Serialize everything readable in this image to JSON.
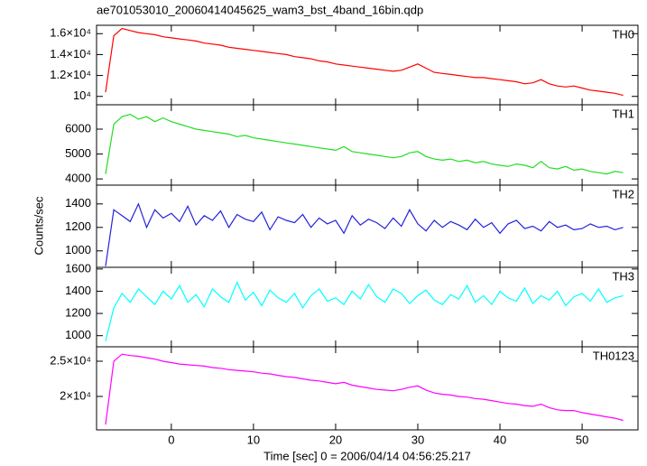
{
  "chart_data": {
    "type": "line",
    "title": "ae701053010_20060414045625_wam3_bst_4band_16bin.qdp",
    "xlabel": "Time [sec] 0 = 2006/04/14 04:56:25.217",
    "ylabel": "Counts/sec",
    "xlim": [
      -9.1,
      56.8
    ],
    "xticks": [
      0,
      10,
      20,
      30,
      40,
      50
    ],
    "x": [
      -8,
      -7,
      -6,
      -5,
      -4,
      -3,
      -2,
      -1,
      0,
      1,
      2,
      3,
      4,
      5,
      6,
      7,
      8,
      9,
      10,
      11,
      12,
      13,
      14,
      15,
      16,
      17,
      18,
      19,
      20,
      21,
      22,
      23,
      24,
      25,
      26,
      27,
      28,
      29,
      30,
      31,
      32,
      33,
      34,
      35,
      36,
      37,
      38,
      39,
      40,
      41,
      42,
      43,
      44,
      45,
      46,
      47,
      48,
      49,
      50,
      51,
      52,
      53,
      54,
      55
    ],
    "series": [
      {
        "name": "TH0",
        "color": "#ff0000",
        "ylim": [
          9200,
          16800
        ],
        "yticks": [
          {
            "value": 10000,
            "label": "10⁴"
          },
          {
            "value": 12000,
            "label": "1.2×10⁴"
          },
          {
            "value": 14000,
            "label": "1.4×10⁴"
          },
          {
            "value": 16000,
            "label": "1.6×10⁴"
          }
        ],
        "values": [
          10400,
          15800,
          16500,
          16300,
          16100,
          16000,
          15900,
          15700,
          15600,
          15500,
          15400,
          15300,
          15100,
          15000,
          14900,
          14700,
          14600,
          14500,
          14400,
          14300,
          14200,
          14100,
          14000,
          13800,
          13700,
          13600,
          13400,
          13300,
          13100,
          13000,
          12900,
          12800,
          12700,
          12600,
          12500,
          12400,
          12500,
          12800,
          13100,
          12700,
          12300,
          12200,
          12100,
          12000,
          11900,
          11800,
          11800,
          11700,
          11600,
          11500,
          11400,
          11200,
          11300,
          11600,
          11200,
          11000,
          10900,
          11000,
          10800,
          10600,
          10500,
          10400,
          10300,
          10100
        ]
      },
      {
        "name": "TH1",
        "color": "#22dd22",
        "ylim": [
          3750,
          6980
        ],
        "yticks": [
          4000,
          5000,
          6000
        ],
        "values": [
          4200,
          6200,
          6500,
          6600,
          6400,
          6500,
          6300,
          6450,
          6300,
          6200,
          6100,
          6000,
          5950,
          5900,
          5850,
          5800,
          5700,
          5750,
          5650,
          5600,
          5550,
          5500,
          5450,
          5400,
          5350,
          5300,
          5250,
          5200,
          5150,
          5300,
          5100,
          5050,
          5000,
          4950,
          4900,
          4850,
          4900,
          5050,
          5100,
          4900,
          4800,
          4750,
          4800,
          4700,
          4750,
          4650,
          4700,
          4600,
          4550,
          4500,
          4600,
          4550,
          4450,
          4700,
          4450,
          4400,
          4500,
          4350,
          4400,
          4300,
          4250,
          4200,
          4300,
          4250
        ]
      },
      {
        "name": "TH2",
        "color": "#2222dd",
        "ylim": [
          860,
          1560
        ],
        "yticks": [
          1000,
          1200,
          1400
        ],
        "values": [
          870,
          1350,
          1300,
          1250,
          1400,
          1200,
          1350,
          1280,
          1320,
          1250,
          1380,
          1220,
          1300,
          1260,
          1340,
          1200,
          1310,
          1270,
          1250,
          1330,
          1180,
          1290,
          1260,
          1240,
          1310,
          1200,
          1280,
          1230,
          1260,
          1150,
          1300,
          1220,
          1270,
          1240,
          1190,
          1280,
          1210,
          1350,
          1230,
          1170,
          1260,
          1200,
          1250,
          1220,
          1180,
          1270,
          1200,
          1240,
          1150,
          1230,
          1260,
          1190,
          1210,
          1170,
          1250,
          1200,
          1220,
          1180,
          1190,
          1230,
          1200,
          1210,
          1180,
          1200
        ]
      },
      {
        "name": "TH3",
        "color": "#00ffff",
        "ylim": [
          900,
          1615
        ],
        "yticks": [
          1000,
          1200,
          1400,
          1600
        ],
        "values": [
          950,
          1250,
          1380,
          1300,
          1420,
          1350,
          1280,
          1400,
          1330,
          1450,
          1300,
          1370,
          1260,
          1420,
          1350,
          1300,
          1480,
          1320,
          1390,
          1270,
          1410,
          1340,
          1300,
          1380,
          1250,
          1360,
          1420,
          1310,
          1340,
          1280,
          1400,
          1330,
          1460,
          1350,
          1300,
          1420,
          1380,
          1290,
          1360,
          1410,
          1320,
          1280,
          1370,
          1330,
          1450,
          1300,
          1360,
          1280,
          1400,
          1340,
          1310,
          1430,
          1290,
          1360,
          1320,
          1400,
          1270,
          1350,
          1380,
          1310,
          1420,
          1300,
          1340,
          1360
        ]
      },
      {
        "name": "TH0123",
        "color": "#ff00ff",
        "ylim": [
          15250,
          27050
        ],
        "yticks": [
          {
            "value": 20000,
            "label": "2×10⁴"
          },
          {
            "value": 25000,
            "label": "2.5×10⁴"
          }
        ],
        "values": [
          16000,
          25000,
          26000,
          25800,
          25700,
          25500,
          25300,
          25000,
          24800,
          24600,
          24500,
          24400,
          24300,
          24100,
          24000,
          23800,
          23700,
          23600,
          23500,
          23300,
          23200,
          23000,
          22800,
          22700,
          22500,
          22300,
          22200,
          22000,
          21800,
          22000,
          21600,
          21400,
          21200,
          21000,
          20900,
          20800,
          21000,
          21300,
          21500,
          20900,
          20500,
          20300,
          20200,
          20000,
          19900,
          19700,
          19600,
          19400,
          19200,
          19000,
          18900,
          18700,
          18600,
          18900,
          18400,
          18100,
          18000,
          18000,
          17700,
          17500,
          17300,
          17100,
          16900,
          16600
        ]
      }
    ]
  }
}
